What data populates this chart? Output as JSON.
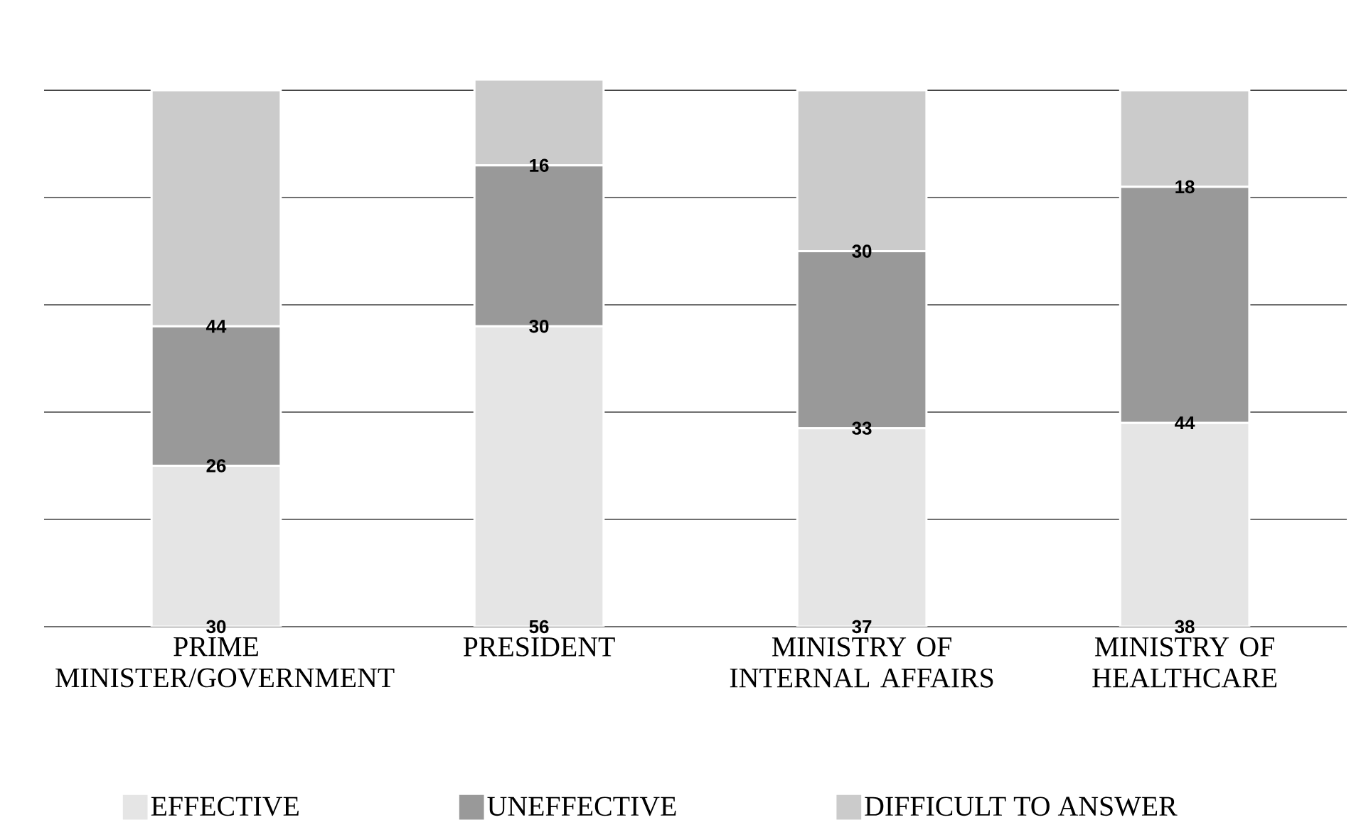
{
  "chart_data": {
    "type": "bar",
    "stacked": true,
    "categories": [
      "PRIME MINISTER/GOVERNMENT",
      "PRESIDENT",
      "MINISTRY OF INTERNAL AFFAIRS",
      "MINISTRY OF HEALTHCARE"
    ],
    "series": [
      {
        "name": "EFFECTIVE",
        "color": "#e5e5e5",
        "values": [
          30,
          56,
          37,
          38
        ]
      },
      {
        "name": "UNEFFECTIVE",
        "color": "#999999",
        "values": [
          26,
          30,
          33,
          44
        ]
      },
      {
        "name": "DIFFICULT TO ANSWER",
        "color": "#cbcbcb",
        "values": [
          44,
          16,
          30,
          18
        ]
      }
    ],
    "yticks": [
      {
        "value": 0,
        "label": null
      },
      {
        "value": 20,
        "label": null
      },
      {
        "value": 40,
        "label": null
      },
      {
        "value": 60,
        "label": null
      },
      {
        "value": 80,
        "label": null
      },
      {
        "value": 100,
        "label": null
      }
    ],
    "tick_labels": "x",
    "grid": "y",
    "legend": "bottom",
    "data_labels": true
  }
}
